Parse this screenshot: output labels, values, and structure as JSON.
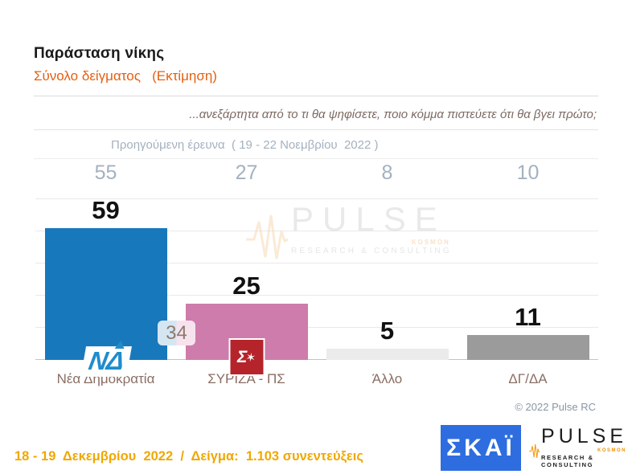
{
  "header": {
    "title": "Παράσταση νίκης",
    "subtitle": "Σύνολο δείγματος   (Εκτίμηση)"
  },
  "question": "...ανεξάρτητα από το τι θα ψηφίσετε, ποιο κόμμα πιστεύετε ότι θα βγει πρώτο;",
  "previous_survey_label": "Προηγούμενη έρευνα  ( 19 - 22 Νοεμβρίου  2022 )",
  "chart_data": {
    "type": "bar",
    "title": "Παράσταση νίκης",
    "categories": [
      "Νέα Δημοκρατία",
      "ΣΥΡΙΖΑ - ΠΣ",
      "Άλλο",
      "ΔΓ/ΔΑ"
    ],
    "series": [
      {
        "name": "Εκτίμηση (18 - 19 Δεκεμβρίου 2022)",
        "values": [
          59,
          25,
          5,
          11
        ]
      },
      {
        "name": "Προηγούμενη έρευνα (19 - 22 Νοεμβρίου 2022)",
        "values": [
          55,
          27,
          8,
          10
        ]
      }
    ],
    "bar_colors": [
      "#1878bc",
      "#ce7cab",
      "#ebebeb",
      "#9b9b9b"
    ],
    "difference_badge": {
      "value": 34,
      "between": [
        "Νέα Δημοκρατία",
        "ΣΥΡΙΖΑ - ΠΣ"
      ]
    },
    "grid": true,
    "legend_position": "none"
  },
  "party_logos": {
    "nd": "ΝΔ",
    "syriza_sigma": "Σ",
    "syriza_star": "✶"
  },
  "watermark": {
    "name": "PULSE",
    "kosmon": "KOSMON",
    "sub": "RESEARCH & CONSULTING"
  },
  "copyright": "© 2022 Pulse RC",
  "footer": {
    "date_sample": "18 - 19  Δεκεμβρίου  2022  /  Δείγμα:  1.103 συνεντεύξεις",
    "skai_logo": "ΣΚΑΪ",
    "pulse_logo": {
      "name": "PULSE",
      "kosmon": "KOSMON",
      "sub": "RESEARCH & CONSULTING"
    }
  }
}
